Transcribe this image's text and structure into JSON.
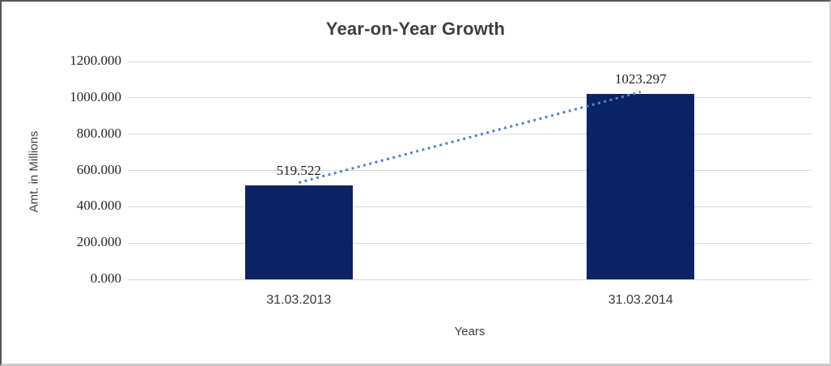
{
  "chart_data": {
    "type": "bar",
    "title": "Year-on-Year Growth",
    "xlabel": "Years",
    "ylabel": "Amt. in Millions",
    "categories": [
      "31.03.2013",
      "31.03.2014"
    ],
    "series": [
      {
        "name": "Amt. in Millions",
        "values": [
          519.522,
          1023.297
        ]
      }
    ],
    "data_labels": [
      "519.522",
      "1023.297"
    ],
    "yticks": [
      0,
      200,
      400,
      600,
      800,
      1000,
      1200
    ],
    "ytick_labels": [
      "0.000",
      "200.000",
      "400.000",
      "600.000",
      "800.000",
      "1000.000",
      "1200.000"
    ],
    "ylim": [
      0,
      1200
    ],
    "grid": "horizontal",
    "legend": "none",
    "trendline": {
      "type": "linear",
      "style": "dotted"
    },
    "colors": {
      "bar": "#0b2264",
      "trendline": "#4e86c4",
      "gridline": "#d9d9d9",
      "title_text": "#3f3f3f",
      "tick_text": "#262626"
    }
  }
}
